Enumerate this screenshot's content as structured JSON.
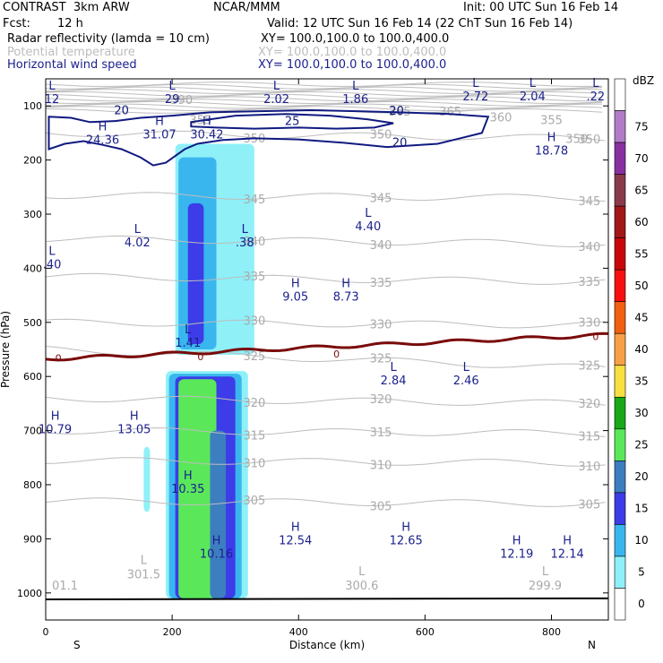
{
  "header": {
    "model": "CONTRAST  3km ARW",
    "center": "NCAR/MMM",
    "init": "Init: 00 UTC Sun 16 Feb 14",
    "fcst_label": "Fcst:",
    "fcst_value": "12 h",
    "valid": "Valid: 12 UTC Sun 16 Feb 14 (22 ChT Sun 16 Feb 14)",
    "fields": [
      {
        "name": "Radar reflectivity (lamda = 10 cm)",
        "xy": "XY= 100.0,100.0 to 100.0,400.0",
        "color": "#000000"
      },
      {
        "name": "Potential temperature",
        "xy": "XY= 100.0,100.0 to 100.0,400.0",
        "color": "#bdbdbd"
      },
      {
        "name": "Horizontal wind speed",
        "xy": "XY= 100.0,100.0 to 100.0,400.0",
        "color": "#1a1f8c"
      }
    ]
  },
  "chart_data": {
    "type": "heatmap",
    "xlabel": "Distance (km)",
    "ylabel": "Pressure (hPa)",
    "xlim": [
      0,
      890
    ],
    "ylim": [
      1050,
      50
    ],
    "x_ticks": [
      0,
      200,
      400,
      600,
      800
    ],
    "y_ticks": [
      100,
      200,
      300,
      400,
      500,
      600,
      700,
      800,
      900,
      1000
    ],
    "x_end_labels": {
      "left": "S",
      "right": "N"
    },
    "colorbar": {
      "unit": "dBZ",
      "levels": [
        {
          "label": "0",
          "color": "#ffffff"
        },
        {
          "label": "5",
          "color": "#8ff0f8"
        },
        {
          "label": "10",
          "color": "#3ab6ee"
        },
        {
          "label": "15",
          "color": "#3c3ce8"
        },
        {
          "label": "20",
          "color": "#3c7ec0"
        },
        {
          "label": "25",
          "color": "#5ae85a"
        },
        {
          "label": "30",
          "color": "#18a818"
        },
        {
          "label": "35",
          "color": "#f8e040"
        },
        {
          "label": "40",
          "color": "#f8a048"
        },
        {
          "label": "45",
          "color": "#f06010"
        },
        {
          "label": "50",
          "color": "#f81010"
        },
        {
          "label": "55",
          "color": "#c80808"
        },
        {
          "label": "60",
          "color": "#a01818"
        },
        {
          "label": "65",
          "color": "#8a3a4a"
        },
        {
          "label": "70",
          "color": "#8830a0"
        },
        {
          "label": "75",
          "color": "#b07cc8"
        },
        {
          "label": "",
          "color": "#ffffff"
        }
      ]
    },
    "reflectivity_regions": [
      {
        "level": "5",
        "x": [
          205,
          330
        ],
        "p": [
          170,
          560
        ]
      },
      {
        "level": "10",
        "x": [
          210,
          270
        ],
        "p": [
          195,
          550
        ]
      },
      {
        "level": "15",
        "x": [
          225,
          250
        ],
        "p": [
          280,
          540
        ]
      },
      {
        "level": "5",
        "x": [
          190,
          320
        ],
        "p": [
          590,
          1010
        ]
      },
      {
        "level": "10",
        "x": [
          195,
          310
        ],
        "p": [
          595,
          1010
        ]
      },
      {
        "level": "15",
        "x": [
          205,
          300
        ],
        "p": [
          600,
          1010
        ]
      },
      {
        "level": "25",
        "x": [
          210,
          270
        ],
        "p": [
          605,
          1010
        ]
      },
      {
        "level": "20",
        "x": [
          260,
          285
        ],
        "p": [
          700,
          1010
        ]
      },
      {
        "level": "5",
        "x": [
          155,
          165
        ],
        "p": [
          730,
          850
        ]
      }
    ],
    "theta_isolines": [
      {
        "value": "350",
        "p_left": 150,
        "p_right": 160
      },
      {
        "value": "345",
        "p_left": 265,
        "p_right": 270
      },
      {
        "value": "340",
        "p_left": 345,
        "p_right": 355
      },
      {
        "value": "335",
        "p_left": 415,
        "p_right": 425
      },
      {
        "value": "330",
        "p_left": 500,
        "p_right": 505
      },
      {
        "value": "325",
        "p_left": 550,
        "p_right": 585
      },
      {
        "value": "320",
        "p_left": 640,
        "p_right": 650
      },
      {
        "value": "315",
        "p_left": 700,
        "p_right": 705
      },
      {
        "value": "310",
        "p_left": 755,
        "p_right": 760
      },
      {
        "value": "305",
        "p_left": 830,
        "p_right": 835
      }
    ],
    "theta_top_labels": [
      "390",
      "355",
      "365",
      "365",
      "360",
      "355",
      "350"
    ],
    "theta_low_labels": [
      {
        "kind": "L",
        "value": "301.5",
        "x": 155,
        "p": 970
      },
      {
        "kind": "L",
        "value": "300.6",
        "x": 500,
        "p": 990
      },
      {
        "kind": "L",
        "value": "299.9",
        "x": 790,
        "p": 990
      },
      {
        "kind": "",
        "value": "01.1",
        "x": 10,
        "p": 990
      }
    ],
    "wind_speed_contours": [
      {
        "value": "20"
      },
      {
        "value": "25"
      }
    ],
    "zero_line_label": "0",
    "wind_hl_labels": [
      {
        "kind": "L",
        "value": "12",
        "x": 10,
        "p": 80
      },
      {
        "kind": "L",
        "value": "29",
        "x": 200,
        "p": 80
      },
      {
        "kind": "L",
        "value": "2.02",
        "x": 365,
        "p": 80
      },
      {
        "kind": "L",
        "value": "1.86",
        "x": 490,
        "p": 80
      },
      {
        "kind": "L",
        "value": "2.72",
        "x": 680,
        "p": 75
      },
      {
        "kind": "L",
        "value": "2.04",
        "x": 770,
        "p": 75
      },
      {
        "kind": "L",
        "value": ".22",
        "x": 870,
        "p": 75
      },
      {
        "kind": "H",
        "value": "24.36",
        "x": 90,
        "p": 155
      },
      {
        "kind": "H",
        "value": "31.07",
        "x": 180,
        "p": 145
      },
      {
        "kind": "H",
        "value": "30.42",
        "x": 255,
        "p": 145
      },
      {
        "kind": "H",
        "value": "18.78",
        "x": 800,
        "p": 175
      },
      {
        "kind": "L",
        "value": "4.02",
        "x": 145,
        "p": 345
      },
      {
        "kind": "L",
        "value": ".38",
        "x": 315,
        "p": 345
      },
      {
        "kind": "L",
        "value": "4.40",
        "x": 510,
        "p": 315
      },
      {
        "kind": "L",
        "value": ".40",
        "x": 10,
        "p": 385
      },
      {
        "kind": "H",
        "value": "9.05",
        "x": 395,
        "p": 445
      },
      {
        "kind": "H",
        "value": "8.73",
        "x": 475,
        "p": 445
      },
      {
        "kind": "L",
        "value": "1.41",
        "x": 225,
        "p": 530
      },
      {
        "kind": "L",
        "value": "2.84",
        "x": 550,
        "p": 600
      },
      {
        "kind": "L",
        "value": "2.46",
        "x": 665,
        "p": 600
      },
      {
        "kind": "H",
        "value": "10.79",
        "x": 15,
        "p": 690
      },
      {
        "kind": "H",
        "value": "13.05",
        "x": 140,
        "p": 690
      },
      {
        "kind": "H",
        "value": "10.35",
        "x": 225,
        "p": 800
      },
      {
        "kind": "H",
        "value": "10.16",
        "x": 270,
        "p": 920
      },
      {
        "kind": "H",
        "value": "12.54",
        "x": 395,
        "p": 895
      },
      {
        "kind": "H",
        "value": "12.65",
        "x": 570,
        "p": 895
      },
      {
        "kind": "H",
        "value": "12.19",
        "x": 745,
        "p": 920
      },
      {
        "kind": "H",
        "value": "12.14",
        "x": 825,
        "p": 920
      }
    ]
  }
}
